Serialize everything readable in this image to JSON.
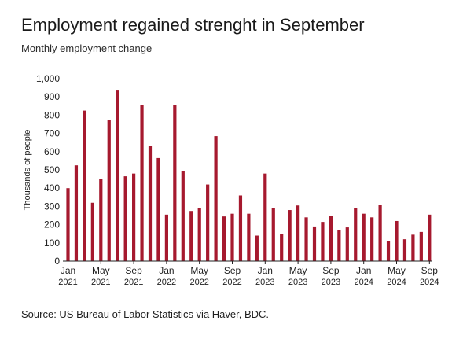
{
  "chart_data": {
    "type": "bar",
    "title": "Employment regained strenght in September",
    "subtitle": "Monthly employment change",
    "ylabel": "Thousands of people",
    "xlabel": "",
    "source": "Source: US Bureau of Labor Statistics via Haver, BDC.",
    "ylim": [
      0,
      1000
    ],
    "yticks": [
      "0",
      "100",
      "200",
      "300",
      "400",
      "500",
      "600",
      "700",
      "800",
      "900",
      "1,000"
    ],
    "grid": false,
    "legend": "none",
    "bar_color": "#a6192e",
    "xtick_labels": [
      {
        "index": 0,
        "month": "Jan",
        "year": "2021"
      },
      {
        "index": 4,
        "month": "May",
        "year": "2021"
      },
      {
        "index": 8,
        "month": "Sep",
        "year": "2021"
      },
      {
        "index": 12,
        "month": "Jan",
        "year": "2022"
      },
      {
        "index": 16,
        "month": "May",
        "year": "2022"
      },
      {
        "index": 20,
        "month": "Sep",
        "year": "2022"
      },
      {
        "index": 24,
        "month": "Jan",
        "year": "2023"
      },
      {
        "index": 28,
        "month": "May",
        "year": "2023"
      },
      {
        "index": 32,
        "month": "Sep",
        "year": "2023"
      },
      {
        "index": 36,
        "month": "Jan",
        "year": "2024"
      },
      {
        "index": 40,
        "month": "May",
        "year": "2024"
      },
      {
        "index": 44,
        "month": "Sep",
        "year": "2024"
      }
    ],
    "categories": [
      "Jan 2021",
      "Feb 2021",
      "Mar 2021",
      "Apr 2021",
      "May 2021",
      "Jun 2021",
      "Jul 2021",
      "Aug 2021",
      "Sep 2021",
      "Oct 2021",
      "Nov 2021",
      "Dec 2021",
      "Jan 2022",
      "Feb 2022",
      "Mar 2022",
      "Apr 2022",
      "May 2022",
      "Jun 2022",
      "Jul 2022",
      "Aug 2022",
      "Sep 2022",
      "Oct 2022",
      "Nov 2022",
      "Dec 2022",
      "Jan 2023",
      "Feb 2023",
      "Mar 2023",
      "Apr 2023",
      "May 2023",
      "Jun 2023",
      "Jul 2023",
      "Aug 2023",
      "Sep 2023",
      "Oct 2023",
      "Nov 2023",
      "Dec 2023",
      "Jan 2024",
      "Feb 2024",
      "Mar 2024",
      "Apr 2024",
      "May 2024",
      "Jun 2024",
      "Jul 2024",
      "Aug 2024",
      "Sep 2024"
    ],
    "values": [
      400,
      525,
      825,
      320,
      450,
      775,
      935,
      465,
      480,
      855,
      630,
      565,
      255,
      855,
      495,
      275,
      290,
      420,
      685,
      245,
      260,
      360,
      260,
      140,
      480,
      290,
      150,
      280,
      305,
      240,
      190,
      215,
      250,
      170,
      185,
      290,
      260,
      240,
      310,
      110,
      220,
      120,
      145,
      160,
      255
    ]
  }
}
